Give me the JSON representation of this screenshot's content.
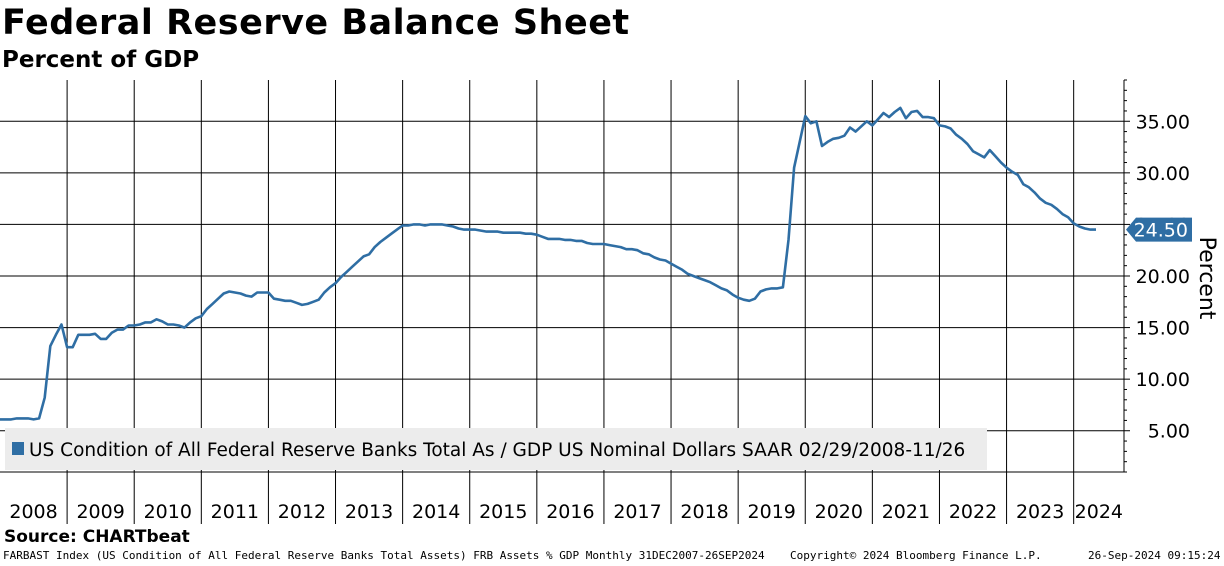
{
  "header": {
    "title": "Federal Reserve Balance Sheet",
    "subtitle": "Percent of GDP"
  },
  "source_label": "Source: CHARTbeat",
  "footer": {
    "left": "FARBAST Index (US Condition of All Federal Reserve Banks Total Assets) FRB Assets % GDP  Monthly 31DEC2007-26SEP2024",
    "center": "Copyright© 2024 Bloomberg Finance L.P.",
    "right": "26-Sep-2024 09:15:24"
  },
  "colors": {
    "series": "#2f6ea4",
    "legend_bg": "#ececec",
    "label_bg": "#2f6ea4"
  },
  "chart_data": {
    "type": "line",
    "title": "Federal Reserve Balance Sheet",
    "subtitle": "Percent of GDP",
    "ylabel": "Percent",
    "ylim": [
      1,
      39
    ],
    "yticks": [
      5,
      10,
      15,
      20,
      25,
      30,
      35
    ],
    "ytick_labels": [
      "5.00",
      "10.00",
      "15.00",
      "20.00",
      "25.00",
      "30.00",
      "35.00"
    ],
    "xlim": [
      "2008-01",
      "2024-10"
    ],
    "xtick_labels": [
      "2008",
      "2009",
      "2010",
      "2011",
      "2012",
      "2013",
      "2014",
      "2015",
      "2016",
      "2017",
      "2018",
      "2019",
      "2020",
      "2021",
      "2022",
      "2023",
      "2024"
    ],
    "grid": true,
    "legend_position": "bottom-left",
    "last_value_label": "24.50",
    "series": [
      {
        "name": "US Condition of All Federal Reserve Banks Total As / GDP US Nominal Dollars SAAR 02/29/2008-11/26",
        "points": [
          [
            "2008-01",
            6.1
          ],
          [
            "2008-02",
            6.1
          ],
          [
            "2008-03",
            6.1
          ],
          [
            "2008-04",
            6.2
          ],
          [
            "2008-05",
            6.2
          ],
          [
            "2008-06",
            6.2
          ],
          [
            "2008-07",
            6.1
          ],
          [
            "2008-08",
            6.2
          ],
          [
            "2008-09",
            8.2
          ],
          [
            "2008-10",
            13.2
          ],
          [
            "2008-11",
            14.3
          ],
          [
            "2008-12",
            15.3
          ],
          [
            "2009-01",
            13.1
          ],
          [
            "2009-02",
            13.1
          ],
          [
            "2009-03",
            14.3
          ],
          [
            "2009-04",
            14.3
          ],
          [
            "2009-05",
            14.3
          ],
          [
            "2009-06",
            14.4
          ],
          [
            "2009-07",
            13.9
          ],
          [
            "2009-08",
            13.9
          ],
          [
            "2009-09",
            14.5
          ],
          [
            "2009-10",
            14.8
          ],
          [
            "2009-11",
            14.8
          ],
          [
            "2009-12",
            15.2
          ],
          [
            "2010-01",
            15.2
          ],
          [
            "2010-02",
            15.3
          ],
          [
            "2010-03",
            15.5
          ],
          [
            "2010-04",
            15.5
          ],
          [
            "2010-05",
            15.8
          ],
          [
            "2010-06",
            15.6
          ],
          [
            "2010-07",
            15.3
          ],
          [
            "2010-08",
            15.3
          ],
          [
            "2010-09",
            15.2
          ],
          [
            "2010-10",
            15.0
          ],
          [
            "2010-11",
            15.5
          ],
          [
            "2010-12",
            15.9
          ],
          [
            "2011-01",
            16.1
          ],
          [
            "2011-02",
            16.8
          ],
          [
            "2011-03",
            17.3
          ],
          [
            "2011-04",
            17.8
          ],
          [
            "2011-05",
            18.3
          ],
          [
            "2011-06",
            18.5
          ],
          [
            "2011-07",
            18.4
          ],
          [
            "2011-08",
            18.3
          ],
          [
            "2011-09",
            18.1
          ],
          [
            "2011-10",
            18.0
          ],
          [
            "2011-11",
            18.4
          ],
          [
            "2011-12",
            18.4
          ],
          [
            "2012-01",
            18.4
          ],
          [
            "2012-02",
            17.8
          ],
          [
            "2012-03",
            17.7
          ],
          [
            "2012-04",
            17.6
          ],
          [
            "2012-05",
            17.6
          ],
          [
            "2012-06",
            17.4
          ],
          [
            "2012-07",
            17.2
          ],
          [
            "2012-08",
            17.3
          ],
          [
            "2012-09",
            17.5
          ],
          [
            "2012-10",
            17.7
          ],
          [
            "2012-11",
            18.4
          ],
          [
            "2012-12",
            18.9
          ],
          [
            "2013-01",
            19.3
          ],
          [
            "2013-02",
            19.9
          ],
          [
            "2013-03",
            20.4
          ],
          [
            "2013-04",
            20.9
          ],
          [
            "2013-05",
            21.4
          ],
          [
            "2013-06",
            21.9
          ],
          [
            "2013-07",
            22.1
          ],
          [
            "2013-08",
            22.8
          ],
          [
            "2013-09",
            23.3
          ],
          [
            "2013-10",
            23.7
          ],
          [
            "2013-11",
            24.1
          ],
          [
            "2013-12",
            24.5
          ],
          [
            "2014-01",
            24.9
          ],
          [
            "2014-02",
            24.9
          ],
          [
            "2014-03",
            25.0
          ],
          [
            "2014-04",
            25.0
          ],
          [
            "2014-05",
            24.9
          ],
          [
            "2014-06",
            25.0
          ],
          [
            "2014-07",
            25.0
          ],
          [
            "2014-08",
            25.0
          ],
          [
            "2014-09",
            24.9
          ],
          [
            "2014-10",
            24.8
          ],
          [
            "2014-11",
            24.6
          ],
          [
            "2014-12",
            24.5
          ],
          [
            "2015-01",
            24.5
          ],
          [
            "2015-02",
            24.5
          ],
          [
            "2015-03",
            24.4
          ],
          [
            "2015-04",
            24.3
          ],
          [
            "2015-05",
            24.3
          ],
          [
            "2015-06",
            24.3
          ],
          [
            "2015-07",
            24.2
          ],
          [
            "2015-08",
            24.2
          ],
          [
            "2015-09",
            24.2
          ],
          [
            "2015-10",
            24.2
          ],
          [
            "2015-11",
            24.1
          ],
          [
            "2015-12",
            24.1
          ],
          [
            "2016-01",
            24.0
          ],
          [
            "2016-02",
            23.8
          ],
          [
            "2016-03",
            23.6
          ],
          [
            "2016-04",
            23.6
          ],
          [
            "2016-05",
            23.6
          ],
          [
            "2016-06",
            23.5
          ],
          [
            "2016-07",
            23.5
          ],
          [
            "2016-08",
            23.4
          ],
          [
            "2016-09",
            23.4
          ],
          [
            "2016-10",
            23.2
          ],
          [
            "2016-11",
            23.1
          ],
          [
            "2016-12",
            23.1
          ],
          [
            "2017-01",
            23.1
          ],
          [
            "2017-02",
            23.0
          ],
          [
            "2017-03",
            22.9
          ],
          [
            "2017-04",
            22.8
          ],
          [
            "2017-05",
            22.6
          ],
          [
            "2017-06",
            22.6
          ],
          [
            "2017-07",
            22.5
          ],
          [
            "2017-08",
            22.2
          ],
          [
            "2017-09",
            22.1
          ],
          [
            "2017-10",
            21.8
          ],
          [
            "2017-11",
            21.6
          ],
          [
            "2017-12",
            21.5
          ],
          [
            "2018-01",
            21.2
          ],
          [
            "2018-02",
            20.9
          ],
          [
            "2018-03",
            20.6
          ],
          [
            "2018-04",
            20.2
          ],
          [
            "2018-05",
            20.0
          ],
          [
            "2018-06",
            19.8
          ],
          [
            "2018-07",
            19.6
          ],
          [
            "2018-08",
            19.4
          ],
          [
            "2018-09",
            19.1
          ],
          [
            "2018-10",
            18.8
          ],
          [
            "2018-11",
            18.6
          ],
          [
            "2018-12",
            18.2
          ],
          [
            "2019-01",
            17.9
          ],
          [
            "2019-02",
            17.7
          ],
          [
            "2019-03",
            17.6
          ],
          [
            "2019-04",
            17.8
          ],
          [
            "2019-05",
            18.5
          ],
          [
            "2019-06",
            18.7
          ],
          [
            "2019-07",
            18.8
          ],
          [
            "2019-08",
            18.8
          ],
          [
            "2019-09",
            18.9
          ],
          [
            "2019-10",
            23.5
          ],
          [
            "2019-11",
            30.5
          ],
          [
            "2019-12",
            33.0
          ],
          [
            "2020-01",
            35.5
          ],
          [
            "2020-02",
            34.8
          ],
          [
            "2020-03",
            35.0
          ],
          [
            "2020-04",
            32.6
          ],
          [
            "2020-05",
            33.0
          ],
          [
            "2020-06",
            33.3
          ],
          [
            "2020-07",
            33.4
          ],
          [
            "2020-08",
            33.6
          ],
          [
            "2020-09",
            34.4
          ],
          [
            "2020-10",
            34.0
          ],
          [
            "2020-11",
            34.5
          ],
          [
            "2020-12",
            35.0
          ],
          [
            "2021-01",
            34.6
          ],
          [
            "2021-02",
            35.2
          ],
          [
            "2021-03",
            35.8
          ],
          [
            "2021-04",
            35.4
          ],
          [
            "2021-05",
            35.9
          ],
          [
            "2021-06",
            36.3
          ],
          [
            "2021-07",
            35.3
          ],
          [
            "2021-08",
            35.9
          ],
          [
            "2021-09",
            36.0
          ],
          [
            "2021-10",
            35.4
          ],
          [
            "2021-11",
            35.4
          ],
          [
            "2021-12",
            35.3
          ],
          [
            "2022-01",
            34.6
          ],
          [
            "2022-02",
            34.5
          ],
          [
            "2022-03",
            34.3
          ],
          [
            "2022-04",
            33.7
          ],
          [
            "2022-05",
            33.3
          ],
          [
            "2022-06",
            32.8
          ],
          [
            "2022-07",
            32.1
          ],
          [
            "2022-08",
            31.8
          ],
          [
            "2022-09",
            31.5
          ],
          [
            "2022-10",
            32.2
          ],
          [
            "2022-11",
            31.6
          ],
          [
            "2022-12",
            31.0
          ],
          [
            "2023-01",
            30.5
          ],
          [
            "2023-02",
            30.1
          ],
          [
            "2023-03",
            29.8
          ],
          [
            "2023-04",
            28.9
          ],
          [
            "2023-05",
            28.6
          ],
          [
            "2023-06",
            28.1
          ],
          [
            "2023-07",
            27.5
          ],
          [
            "2023-08",
            27.1
          ],
          [
            "2023-09",
            26.9
          ],
          [
            "2023-10",
            26.5
          ],
          [
            "2023-11",
            26.0
          ],
          [
            "2023-12",
            25.7
          ],
          [
            "2024-01",
            25.1
          ],
          [
            "2024-02",
            24.8
          ],
          [
            "2024-03",
            24.6
          ],
          [
            "2024-04",
            24.5
          ],
          [
            "2024-05",
            24.5
          ]
        ]
      }
    ]
  }
}
